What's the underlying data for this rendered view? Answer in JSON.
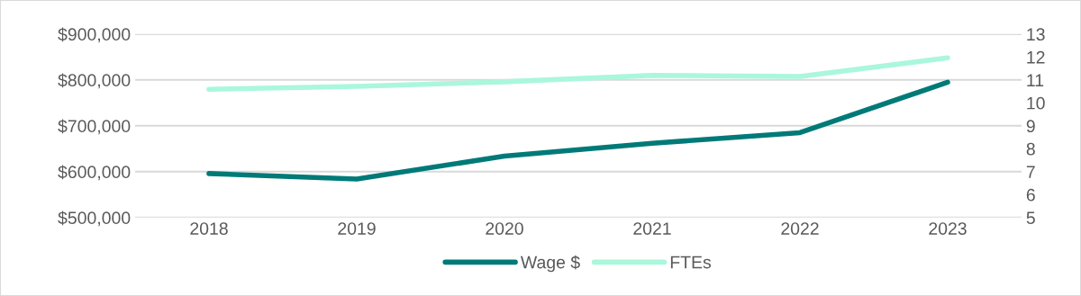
{
  "chart_data": {
    "type": "line",
    "categories": [
      "2018",
      "2019",
      "2020",
      "2021",
      "2022",
      "2023"
    ],
    "series": [
      {
        "name": "Wage $",
        "color": "#007a78",
        "values": [
          596000,
          584000,
          634000,
          662000,
          685000,
          795000
        ]
      },
      {
        "name": "FTEs",
        "color": "#aaf7dc",
        "axis": "y2",
        "values": [
          10.59,
          10.72,
          10.92,
          11.2,
          11.15,
          11.96
        ]
      }
    ],
    "ylim": [
      500000,
      900000
    ],
    "yticks": [
      {
        "value": 500000,
        "label": "$500,000"
      },
      {
        "value": 600000,
        "label": "$600,000"
      },
      {
        "value": 700000,
        "label": "$700,000"
      },
      {
        "value": 800000,
        "label": "$800,000"
      },
      {
        "value": 900000,
        "label": "$900,000"
      }
    ],
    "y2lim": [
      5,
      13
    ],
    "y2ticks": [
      5,
      6,
      7,
      8,
      9,
      10,
      11,
      12,
      13
    ],
    "grid": "y",
    "legend": "bottom",
    "marker": "none",
    "line_style": "solid"
  }
}
